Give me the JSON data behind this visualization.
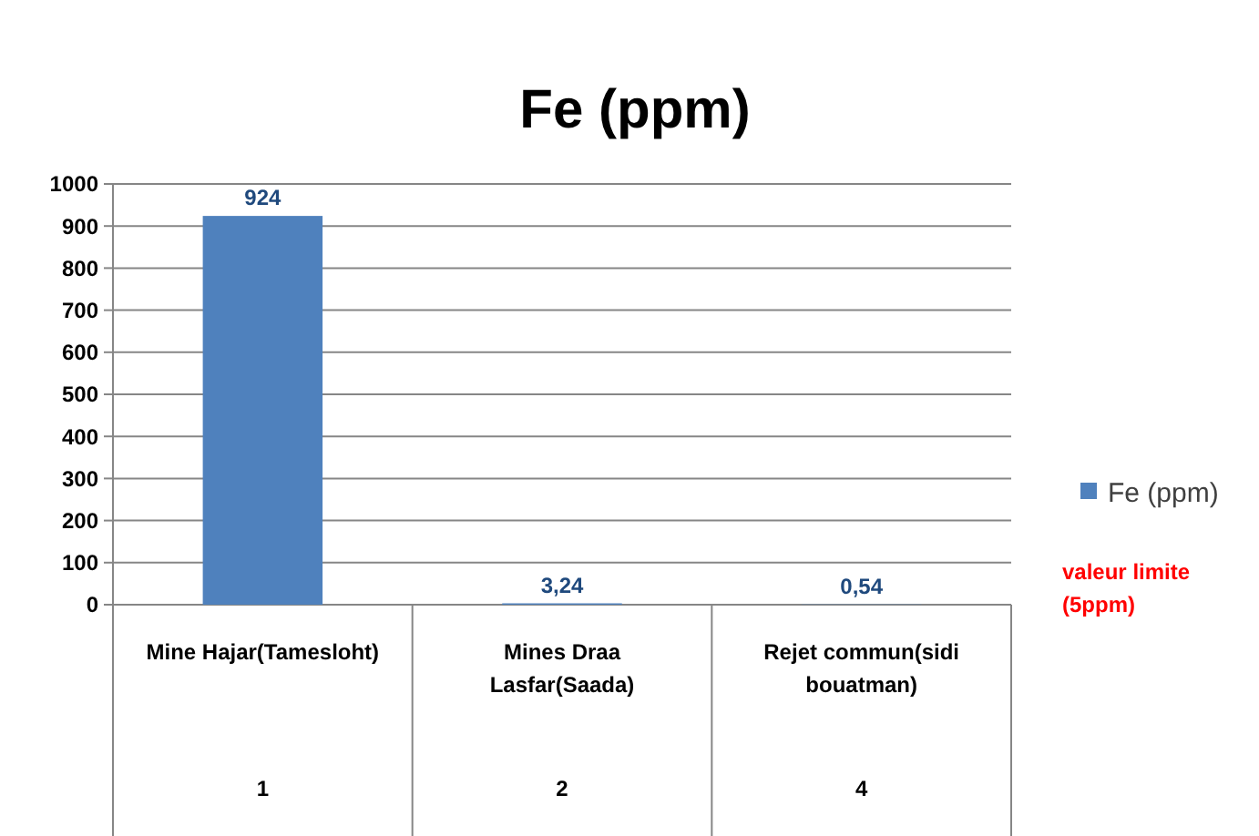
{
  "chart_data": {
    "type": "bar",
    "title": "Fe (ppm)",
    "categories": [
      "Mine Hajar(Tamesloht)",
      "Mines Draa Lasfar(Saada)",
      "Rejet commun(sidi bouatman)"
    ],
    "series": [
      {
        "name": "Fe (ppm)",
        "color": "#4f81bd",
        "values": [
          924,
          3.24,
          0.54
        ],
        "value_labels": [
          "924",
          "3,24",
          "0,54"
        ]
      }
    ],
    "ylim": [
      0,
      1000
    ],
    "yticks": [
      0,
      100,
      200,
      300,
      400,
      500,
      600,
      700,
      800,
      900,
      1000
    ],
    "grid": "y",
    "legend": "right",
    "annotations": [
      "1",
      "2",
      "4",
      "valeur limite (5ppm)"
    ]
  }
}
